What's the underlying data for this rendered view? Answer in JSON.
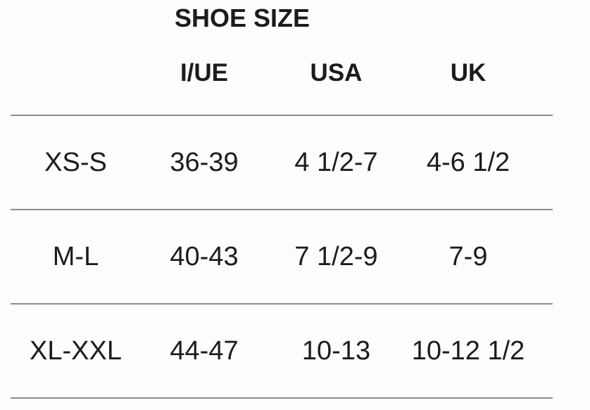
{
  "theme": {
    "text": "#1c1c1c",
    "line": "#8c8c8c",
    "background": "#fdfdfd"
  },
  "chart_data": {
    "type": "table",
    "title": "SHOE SIZE",
    "columns": [
      "",
      "I/UE",
      "USA",
      "UK"
    ],
    "rows": [
      [
        "XS-S",
        "36-39",
        "4 1/2-7",
        "4-6 1/2"
      ],
      [
        "M-L",
        "40-43",
        "7 1/2-9",
        "7-9"
      ],
      [
        "XL-XXL",
        "44-47",
        "10-13",
        "10-12 1/2"
      ]
    ],
    "layout_hints": {
      "header_bold": true,
      "row_separators": "horizontal gray rules",
      "alignment": "center"
    }
  }
}
